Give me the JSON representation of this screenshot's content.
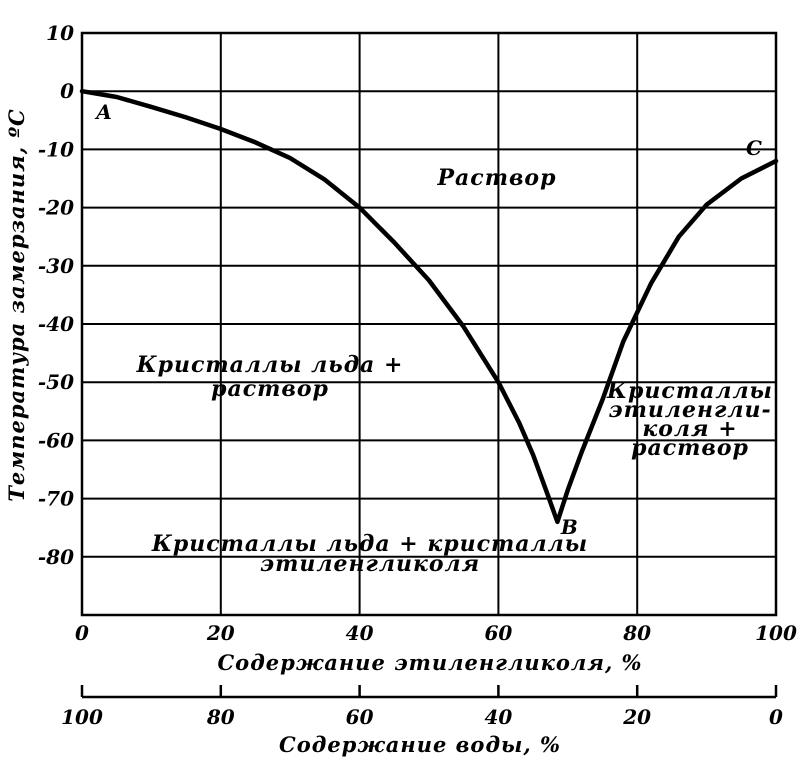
{
  "chart_data": {
    "type": "line",
    "xlabel": "Содержание этиленгликоля, %",
    "x2label": "Содержание воды, %",
    "ylabel": "Температура замерзания, ºC",
    "xlim": [
      0,
      100
    ],
    "ylim": [
      -90,
      10
    ],
    "x_ticks": [
      0,
      20,
      40,
      60,
      80,
      100
    ],
    "x2_ticks": [
      100,
      80,
      60,
      40,
      20,
      0
    ],
    "y_ticks": [
      10,
      0,
      -10,
      -20,
      -30,
      -40,
      -50,
      -60,
      -70,
      -80
    ],
    "grid": true,
    "series": [
      {
        "values": [
          [
            0,
            0
          ],
          [
            5,
            -1
          ],
          [
            10,
            -2.7
          ],
          [
            15,
            -4.5
          ],
          [
            20,
            -6.5
          ],
          [
            25,
            -8.8
          ],
          [
            30,
            -11.5
          ],
          [
            35,
            -15.2
          ],
          [
            40,
            -20
          ],
          [
            45,
            -26
          ],
          [
            50,
            -32.5
          ],
          [
            55,
            -40.5
          ],
          [
            60,
            -50
          ],
          [
            63,
            -57
          ],
          [
            65,
            -62.5
          ],
          [
            67,
            -69
          ],
          [
            68.5,
            -74
          ],
          [
            70,
            -68.5
          ],
          [
            72,
            -62
          ],
          [
            75,
            -53
          ],
          [
            78,
            -43
          ],
          [
            82,
            -33
          ],
          [
            86,
            -25
          ],
          [
            90,
            -19.5
          ],
          [
            95,
            -15
          ],
          [
            100,
            -12
          ]
        ]
      }
    ],
    "point_labels": [
      {
        "label": "A",
        "x": 0,
        "y": 0
      },
      {
        "label": "B",
        "x": 68.5,
        "y": -74
      },
      {
        "label": "C",
        "x": 100,
        "y": -12
      }
    ],
    "annotations": [
      {
        "id": "solution",
        "lines": [
          "Раствор"
        ]
      },
      {
        "id": "ice-solution",
        "lines": [
          "Кристаллы льда +",
          "раствор"
        ]
      },
      {
        "id": "glycol-solution",
        "lines": [
          "Кристаллы",
          "этиленгли-",
          "коля +",
          "раствор"
        ]
      },
      {
        "id": "ice-glycol",
        "lines": [
          "Кристаллы льда + кристаллы",
          "этиленгликоля"
        ]
      }
    ]
  }
}
